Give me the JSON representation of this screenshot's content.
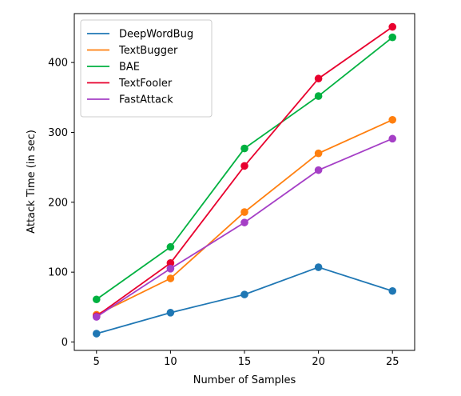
{
  "chart_data": {
    "type": "line",
    "title": "",
    "xlabel": "Number of Samples",
    "ylabel": "Attack Time (in sec)",
    "x": [
      5,
      10,
      15,
      20,
      25
    ],
    "xlim": [
      3.5,
      26.5
    ],
    "ylim": [
      -12,
      470
    ],
    "xticks": [
      5,
      10,
      15,
      20,
      25
    ],
    "yticks": [
      0,
      100,
      200,
      300,
      400
    ],
    "grid": false,
    "legend_position": "top-left",
    "series": [
      {
        "name": "DeepWordBug",
        "color": "#1f77b4",
        "values": [
          12,
          42,
          68,
          107,
          73
        ]
      },
      {
        "name": "TextBugger",
        "color": "#ff7f0e",
        "values": [
          39,
          91,
          186,
          270,
          318
        ]
      },
      {
        "name": "BAE",
        "color": "#00b140",
        "values": [
          61,
          136,
          277,
          352,
          436
        ]
      },
      {
        "name": "TextFooler",
        "color": "#e8002e",
        "values": [
          37,
          113,
          252,
          377,
          451
        ]
      },
      {
        "name": "FastAttack",
        "color": "#a53fc6",
        "values": [
          36,
          105,
          171,
          246,
          291
        ]
      }
    ]
  }
}
